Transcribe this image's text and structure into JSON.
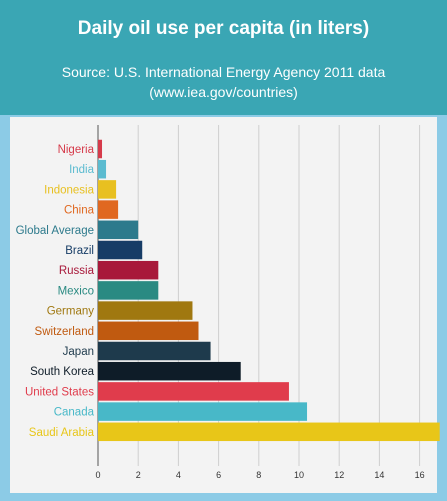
{
  "header": {
    "title": "Daily oil use per capita (in liters)",
    "subtitle_line1": "Source: U.S. International Energy Agency 2011 data",
    "subtitle_line2": "(www.iea.gov/countries)"
  },
  "chart_data": {
    "type": "bar",
    "orientation": "horizontal",
    "title": "Daily oil use per capita (in liters)",
    "subtitle": "Source: U.S. International Energy Agency 2011 data (www.iea.gov/countries)",
    "xlabel": "",
    "ylabel": "",
    "xlim": [
      0,
      17
    ],
    "xticks": [
      0,
      2,
      4,
      6,
      8,
      10,
      12,
      14,
      16
    ],
    "grid": true,
    "legend": "none",
    "categories": [
      "Nigeria",
      "India",
      "Indonesia",
      "China",
      "Global Average",
      "Brazil",
      "Russia",
      "Mexico",
      "Germany",
      "Switzerland",
      "Japan",
      "South Korea",
      "United States",
      "Canada",
      "Saudi Arabia"
    ],
    "values": [
      0.2,
      0.4,
      0.9,
      1.0,
      2.0,
      2.2,
      3.0,
      3.0,
      4.7,
      5.0,
      5.6,
      7.1,
      9.5,
      10.4,
      17.0
    ],
    "colors": [
      "#d63a4a",
      "#5bbbd0",
      "#e8c020",
      "#e06820",
      "#2d7a8c",
      "#163c66",
      "#a8183a",
      "#2a8a82",
      "#a07810",
      "#c05a10",
      "#1e3a4c",
      "#0e1c28",
      "#e03c4c",
      "#48b8c8",
      "#e8c618"
    ]
  }
}
